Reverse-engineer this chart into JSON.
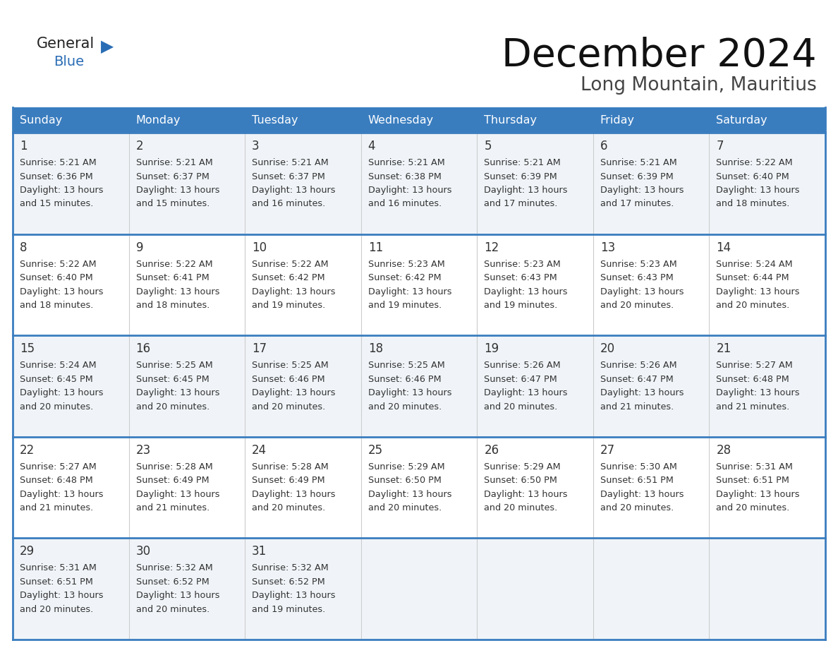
{
  "title": "December 2024",
  "subtitle": "Long Mountain, Mauritius",
  "header_bg_color": "#3a7dbf",
  "header_text_color": "#ffffff",
  "row_separator_color": "#3a7dbf",
  "col_separator_color": "#cccccc",
  "day_num_color": "#333333",
  "cell_text_color": "#333333",
  "bg_color": "#ffffff",
  "cell_bg_odd": "#f0f4f8",
  "cell_bg_even": "#ffffff",
  "days_of_week": [
    "Sunday",
    "Monday",
    "Tuesday",
    "Wednesday",
    "Thursday",
    "Friday",
    "Saturday"
  ],
  "logo_general_color": "#222222",
  "logo_blue_color": "#2a6db5",
  "calendar_data": [
    [
      {
        "day": 1,
        "sunrise": "5:21 AM",
        "sunset": "6:36 PM",
        "daylight_hours": 13,
        "daylight_minutes": 15
      },
      {
        "day": 2,
        "sunrise": "5:21 AM",
        "sunset": "6:37 PM",
        "daylight_hours": 13,
        "daylight_minutes": 15
      },
      {
        "day": 3,
        "sunrise": "5:21 AM",
        "sunset": "6:37 PM",
        "daylight_hours": 13,
        "daylight_minutes": 16
      },
      {
        "day": 4,
        "sunrise": "5:21 AM",
        "sunset": "6:38 PM",
        "daylight_hours": 13,
        "daylight_minutes": 16
      },
      {
        "day": 5,
        "sunrise": "5:21 AM",
        "sunset": "6:39 PM",
        "daylight_hours": 13,
        "daylight_minutes": 17
      },
      {
        "day": 6,
        "sunrise": "5:21 AM",
        "sunset": "6:39 PM",
        "daylight_hours": 13,
        "daylight_minutes": 17
      },
      {
        "day": 7,
        "sunrise": "5:22 AM",
        "sunset": "6:40 PM",
        "daylight_hours": 13,
        "daylight_minutes": 18
      }
    ],
    [
      {
        "day": 8,
        "sunrise": "5:22 AM",
        "sunset": "6:40 PM",
        "daylight_hours": 13,
        "daylight_minutes": 18
      },
      {
        "day": 9,
        "sunrise": "5:22 AM",
        "sunset": "6:41 PM",
        "daylight_hours": 13,
        "daylight_minutes": 18
      },
      {
        "day": 10,
        "sunrise": "5:22 AM",
        "sunset": "6:42 PM",
        "daylight_hours": 13,
        "daylight_minutes": 19
      },
      {
        "day": 11,
        "sunrise": "5:23 AM",
        "sunset": "6:42 PM",
        "daylight_hours": 13,
        "daylight_minutes": 19
      },
      {
        "day": 12,
        "sunrise": "5:23 AM",
        "sunset": "6:43 PM",
        "daylight_hours": 13,
        "daylight_minutes": 19
      },
      {
        "day": 13,
        "sunrise": "5:23 AM",
        "sunset": "6:43 PM",
        "daylight_hours": 13,
        "daylight_minutes": 20
      },
      {
        "day": 14,
        "sunrise": "5:24 AM",
        "sunset": "6:44 PM",
        "daylight_hours": 13,
        "daylight_minutes": 20
      }
    ],
    [
      {
        "day": 15,
        "sunrise": "5:24 AM",
        "sunset": "6:45 PM",
        "daylight_hours": 13,
        "daylight_minutes": 20
      },
      {
        "day": 16,
        "sunrise": "5:25 AM",
        "sunset": "6:45 PM",
        "daylight_hours": 13,
        "daylight_minutes": 20
      },
      {
        "day": 17,
        "sunrise": "5:25 AM",
        "sunset": "6:46 PM",
        "daylight_hours": 13,
        "daylight_minutes": 20
      },
      {
        "day": 18,
        "sunrise": "5:25 AM",
        "sunset": "6:46 PM",
        "daylight_hours": 13,
        "daylight_minutes": 20
      },
      {
        "day": 19,
        "sunrise": "5:26 AM",
        "sunset": "6:47 PM",
        "daylight_hours": 13,
        "daylight_minutes": 20
      },
      {
        "day": 20,
        "sunrise": "5:26 AM",
        "sunset": "6:47 PM",
        "daylight_hours": 13,
        "daylight_minutes": 21
      },
      {
        "day": 21,
        "sunrise": "5:27 AM",
        "sunset": "6:48 PM",
        "daylight_hours": 13,
        "daylight_minutes": 21
      }
    ],
    [
      {
        "day": 22,
        "sunrise": "5:27 AM",
        "sunset": "6:48 PM",
        "daylight_hours": 13,
        "daylight_minutes": 21
      },
      {
        "day": 23,
        "sunrise": "5:28 AM",
        "sunset": "6:49 PM",
        "daylight_hours": 13,
        "daylight_minutes": 21
      },
      {
        "day": 24,
        "sunrise": "5:28 AM",
        "sunset": "6:49 PM",
        "daylight_hours": 13,
        "daylight_minutes": 20
      },
      {
        "day": 25,
        "sunrise": "5:29 AM",
        "sunset": "6:50 PM",
        "daylight_hours": 13,
        "daylight_minutes": 20
      },
      {
        "day": 26,
        "sunrise": "5:29 AM",
        "sunset": "6:50 PM",
        "daylight_hours": 13,
        "daylight_minutes": 20
      },
      {
        "day": 27,
        "sunrise": "5:30 AM",
        "sunset": "6:51 PM",
        "daylight_hours": 13,
        "daylight_minutes": 20
      },
      {
        "day": 28,
        "sunrise": "5:31 AM",
        "sunset": "6:51 PM",
        "daylight_hours": 13,
        "daylight_minutes": 20
      }
    ],
    [
      {
        "day": 29,
        "sunrise": "5:31 AM",
        "sunset": "6:51 PM",
        "daylight_hours": 13,
        "daylight_minutes": 20
      },
      {
        "day": 30,
        "sunrise": "5:32 AM",
        "sunset": "6:52 PM",
        "daylight_hours": 13,
        "daylight_minutes": 20
      },
      {
        "day": 31,
        "sunrise": "5:32 AM",
        "sunset": "6:52 PM",
        "daylight_hours": 13,
        "daylight_minutes": 19
      },
      null,
      null,
      null,
      null
    ]
  ]
}
